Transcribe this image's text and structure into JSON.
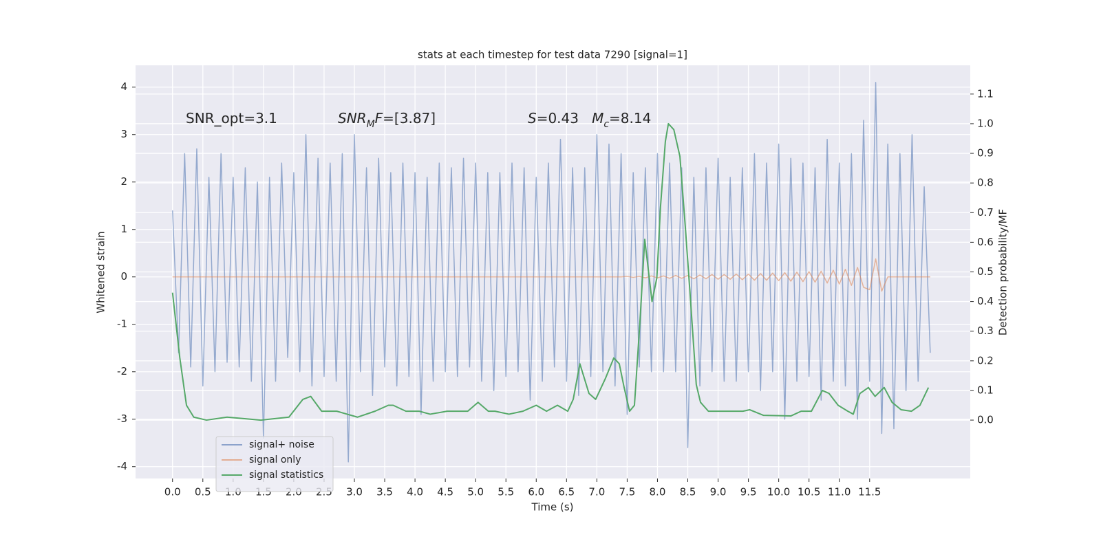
{
  "chart_data": {
    "type": "line",
    "title": "stats at each timestep for test data 7290 [signal=1]",
    "xlabel": "Time (s)",
    "ylabel": "Whitened strain",
    "y2label": "Detection probability/MF",
    "xlim": [
      -0.61,
      13.16
    ],
    "ylim": [
      -4.25,
      4.46
    ],
    "y2lim": [
      -0.197,
      1.197
    ],
    "xticks": [
      {
        "value": 0,
        "label": "0.0"
      },
      0.5,
      {
        "value": 1,
        "label": "1.0"
      },
      1.5,
      {
        "value": 2,
        "label": "2.0"
      },
      2.5,
      {
        "value": 3,
        "label": "3.0"
      },
      3.5,
      {
        "value": 4,
        "label": "4.0"
      },
      4.5,
      {
        "value": 5,
        "label": "5.0"
      },
      5.5,
      {
        "value": 6,
        "label": "6.0"
      },
      6.5,
      {
        "value": 7,
        "label": "7.0"
      },
      7.5,
      {
        "value": 8,
        "label": "8.0"
      },
      8.5,
      {
        "value": 9,
        "label": "9.0"
      },
      9.5,
      {
        "value": 10,
        "label": "10.0"
      },
      10.5,
      {
        "value": 11,
        "label": "11.0"
      },
      11.5
    ],
    "yticks": [
      -4,
      -3,
      -2,
      -1,
      0,
      1,
      2,
      3,
      4
    ],
    "y2ticks": [
      {
        "value": 0,
        "label": "0.0"
      },
      0.1,
      0.2,
      0.3,
      0.4,
      0.5,
      0.6,
      0.7,
      0.8,
      0.9,
      {
        "value": 1,
        "label": "1.0"
      },
      1.1
    ],
    "grid": true,
    "legend": "lower left",
    "x": [
      0,
      0.1,
      0.2,
      0.3,
      0.4,
      0.5,
      0.6,
      0.7,
      0.8,
      0.9,
      1,
      1.1,
      1.2,
      1.3,
      1.4,
      1.5,
      1.6,
      1.7,
      1.8,
      1.9,
      2,
      2.1,
      2.2,
      2.3,
      2.4,
      2.5,
      2.6,
      2.7,
      2.8,
      2.9,
      3,
      3.1,
      3.2,
      3.3,
      3.4,
      3.5,
      3.6,
      3.7,
      3.8,
      3.9,
      4,
      4.1,
      4.2,
      4.3,
      4.4,
      4.5,
      4.6,
      4.7,
      4.8,
      4.9,
      5,
      5.1,
      5.2,
      5.3,
      5.4,
      5.5,
      5.6,
      5.7,
      5.8,
      5.9,
      6,
      6.1,
      6.2,
      6.3,
      6.4,
      6.5,
      6.6,
      6.7,
      6.8,
      6.9,
      7,
      7.1,
      7.2,
      7.3,
      7.4,
      7.5,
      7.6,
      7.7,
      7.8,
      7.9,
      8,
      8.1,
      8.2,
      8.3,
      8.4,
      8.5,
      8.6,
      8.7,
      8.8,
      8.9,
      9,
      9.1,
      9.2,
      9.3,
      9.4,
      9.5,
      9.6,
      9.7,
      9.8,
      9.9,
      10,
      10.1,
      10.2,
      10.3,
      10.4,
      10.5,
      10.6,
      10.7,
      10.8,
      10.9,
      11,
      11.1,
      11.2,
      11.3,
      11.4,
      11.5,
      11.6,
      11.7,
      11.8,
      11.9,
      12,
      12.1,
      12.2,
      12.3,
      12.4,
      12.5
    ],
    "series": [
      {
        "name": "signal+ noise",
        "color": "#4c72b0",
        "values": [
          1.4,
          -1.6,
          2.6,
          -1.9,
          2.7,
          -2.3,
          2.1,
          -2.0,
          2.6,
          -1.8,
          2.1,
          -1.9,
          2.3,
          -2.2,
          2.0,
          -3.4,
          2.1,
          -2.2,
          2.4,
          -1.7,
          2.2,
          -2.0,
          3.0,
          -2.3,
          2.5,
          -2.1,
          2.4,
          -2.2,
          2.6,
          -3.9,
          3.0,
          -2.0,
          2.3,
          -2.5,
          2.5,
          -1.9,
          2.2,
          -2.3,
          2.4,
          -2.1,
          2.2,
          -2.9,
          2.1,
          -2.2,
          2.4,
          -2.0,
          2.3,
          -2.1,
          2.5,
          -1.9,
          2.4,
          -2.2,
          2.2,
          -2.4,
          2.2,
          -2.1,
          2.4,
          -2.0,
          2.3,
          -2.6,
          2.1,
          -2.2,
          2.4,
          -1.9,
          2.9,
          -2.2,
          2.3,
          -2.5,
          2.3,
          -2.1,
          3.0,
          -2.0,
          2.8,
          -2.3,
          2.6,
          -2.9,
          2.2,
          -1.9,
          2.3,
          -2.0,
          2.6,
          -2.0,
          2.4,
          -2.0,
          2.3,
          -3.6,
          2.1,
          -2.3,
          2.3,
          -2.0,
          2.5,
          -2.2,
          2.1,
          -2.2,
          2.3,
          -2.0,
          2.6,
          -2.4,
          2.4,
          -2.0,
          2.8,
          -3.0,
          2.5,
          -2.2,
          2.4,
          -2.1,
          2.3,
          -2.6,
          2.9,
          -2.2,
          2.4,
          -2.3,
          2.6,
          -3.0,
          3.3,
          -2.2,
          4.1,
          -3.3,
          2.8,
          -3.2,
          2.6,
          -2.4,
          3.0,
          -2.2,
          1.9,
          -1.6
        ]
      },
      {
        "name": "signal only",
        "color": "#dd8452",
        "values": [
          0,
          0,
          0,
          0,
          0,
          0,
          0,
          0,
          0,
          0,
          0,
          0,
          0,
          0,
          0,
          0,
          0,
          0,
          0,
          0,
          0,
          0,
          0,
          0,
          0,
          0,
          0,
          0,
          0,
          0,
          0,
          0,
          0,
          0,
          0,
          0,
          0,
          0,
          0,
          0,
          0,
          0,
          0,
          0,
          0,
          0,
          0,
          0,
          0,
          0,
          0,
          0,
          0,
          0,
          0,
          0,
          0,
          0,
          0,
          0,
          0,
          0,
          0,
          0,
          0,
          0,
          0,
          0,
          0,
          0,
          0,
          0,
          0,
          0,
          0,
          0.01,
          -0.01,
          0.01,
          -0.02,
          0.02,
          -0.02,
          0.02,
          -0.03,
          0.03,
          -0.03,
          0.03,
          -0.04,
          0.04,
          -0.04,
          0.05,
          -0.05,
          0.05,
          -0.05,
          0.06,
          -0.06,
          0.06,
          -0.07,
          0.07,
          -0.07,
          0.08,
          -0.08,
          0.09,
          -0.09,
          0.1,
          -0.1,
          0.11,
          -0.11,
          0.12,
          -0.13,
          0.14,
          -0.15,
          0.16,
          -0.18,
          0.2,
          -0.22,
          -0.27,
          0.38,
          -0.3,
          0,
          0,
          0,
          0,
          0,
          0,
          0,
          0
        ]
      },
      {
        "name": "signal statistics",
        "color": "#55a868",
        "axis": "y2",
        "x": [
          0,
          0.12,
          0.23,
          0.35,
          0.56,
          0.9,
          1.46,
          1.92,
          2.15,
          2.28,
          2.46,
          2.71,
          3.05,
          3.34,
          3.56,
          3.64,
          3.85,
          4.07,
          4.25,
          4.53,
          4.7,
          4.87,
          5.04,
          5.21,
          5.32,
          5.55,
          5.78,
          6.0,
          6.17,
          6.35,
          6.52,
          6.61,
          6.72,
          6.87,
          6.98,
          7.14,
          7.28,
          7.37,
          7.45,
          7.54,
          7.62,
          7.71,
          7.79,
          7.91,
          7.99,
          8.05,
          8.13,
          8.18,
          8.27,
          8.37,
          8.46,
          8.54,
          8.64,
          8.71,
          8.84,
          9.01,
          9.41,
          9.52,
          9.75,
          10.2,
          10.37,
          10.54,
          10.72,
          10.83,
          10.98,
          11.14,
          11.23,
          11.34,
          11.48,
          11.59,
          11.74,
          11.87,
          12.02,
          12.19,
          12.33,
          12.47
        ],
        "values": [
          0.43,
          0.21,
          0.05,
          0.01,
          0.0,
          0.01,
          0.0,
          0.01,
          0.07,
          0.08,
          0.03,
          0.03,
          0.01,
          0.03,
          0.05,
          0.05,
          0.03,
          0.03,
          0.02,
          0.03,
          0.03,
          0.03,
          0.06,
          0.03,
          0.03,
          0.02,
          0.03,
          0.05,
          0.03,
          0.05,
          0.03,
          0.07,
          0.19,
          0.09,
          0.07,
          0.14,
          0.21,
          0.19,
          0.11,
          0.03,
          0.05,
          0.33,
          0.61,
          0.4,
          0.48,
          0.72,
          0.94,
          1.0,
          0.98,
          0.89,
          0.65,
          0.42,
          0.12,
          0.06,
          0.03,
          0.03,
          0.03,
          0.035,
          0.016,
          0.014,
          0.03,
          0.03,
          0.1,
          0.09,
          0.05,
          0.03,
          0.02,
          0.09,
          0.11,
          0.08,
          0.11,
          0.06,
          0.035,
          0.03,
          0.05,
          0.11
        ]
      }
    ],
    "annotations": [
      [
        {
          "text": "SNR_opt=3.1"
        }
      ],
      [
        {
          "text": "SNR",
          "italic": true
        },
        {
          "text": "M",
          "italic": true,
          "sub": true
        },
        {
          "text": "F",
          "italic": true
        },
        {
          "text": "=[3.87]"
        }
      ],
      [
        {
          "text": "S",
          "italic": true
        },
        {
          "text": "=0.43   "
        },
        {
          "text": "M",
          "italic": true
        },
        {
          "text": "c",
          "italic": true,
          "sub": true
        },
        {
          "text": "=8.14"
        }
      ]
    ]
  }
}
